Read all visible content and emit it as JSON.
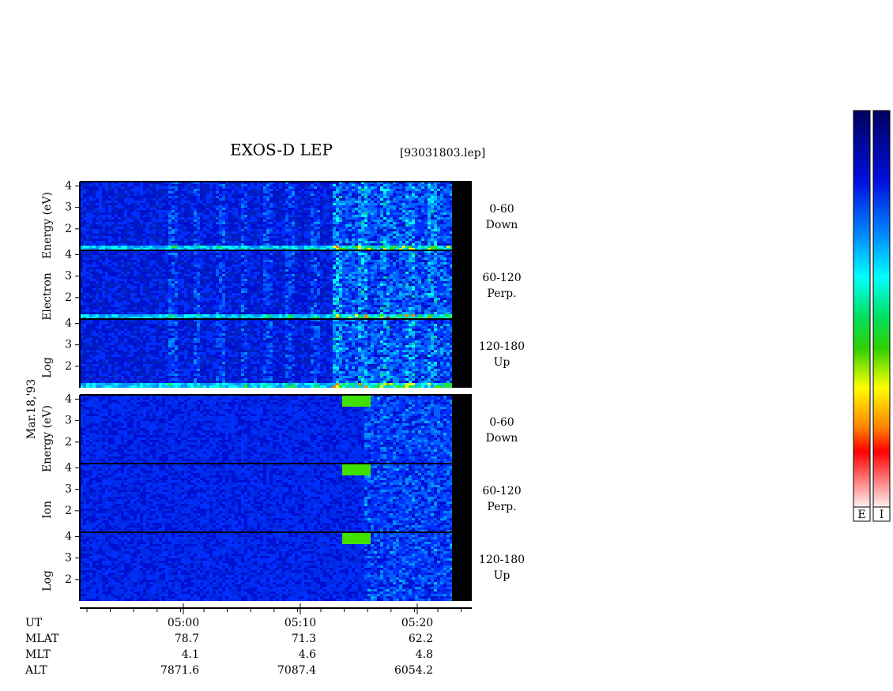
{
  "chart_data": {
    "type": "spectrogram",
    "title": "EXOS-D LEP",
    "file": "[93031803.lep]",
    "date": "Mar.18,'93",
    "groups": [
      {
        "label": [
          "Log",
          "Electron",
          "Energy (eV)"
        ],
        "panels": [
          {
            "angle": "0-60",
            "direction": "Down",
            "ylim": [
              1,
              4.2
            ],
            "yticks": [
              2,
              3,
              4
            ]
          },
          {
            "angle": "60-120",
            "direction": "Perp.",
            "ylim": [
              1,
              4.2
            ],
            "yticks": [
              2,
              3,
              4
            ]
          },
          {
            "angle": "120-180",
            "direction": "Up",
            "ylim": [
              1,
              4.2
            ],
            "yticks": [
              2,
              3,
              4
            ]
          }
        ]
      },
      {
        "label": [
          "Log",
          "Ion",
          "Energy (eV)"
        ],
        "panels": [
          {
            "angle": "0-60",
            "direction": "Down",
            "ylim": [
              1,
              4.2
            ],
            "yticks": [
              2,
              3,
              4
            ]
          },
          {
            "angle": "60-120",
            "direction": "Perp.",
            "ylim": [
              1,
              4.2
            ],
            "yticks": [
              2,
              3,
              4
            ]
          },
          {
            "angle": "120-180",
            "direction": "Up",
            "ylim": [
              1,
              4.2
            ],
            "yticks": [
              2,
              3,
              4
            ]
          }
        ]
      }
    ],
    "ephemeris": [
      {
        "label": "UT",
        "values": [
          "05:00",
          "05:10",
          "05:20"
        ]
      },
      {
        "label": "MLAT",
        "values": [
          78.7,
          71.3,
          62.2
        ]
      },
      {
        "label": "MLT",
        "values": [
          4.1,
          4.6,
          4.8
        ]
      },
      {
        "label": "ALT",
        "values": [
          7871.6,
          7087.4,
          6054.2
        ]
      }
    ],
    "colorbars": [
      "E",
      "I"
    ]
  }
}
